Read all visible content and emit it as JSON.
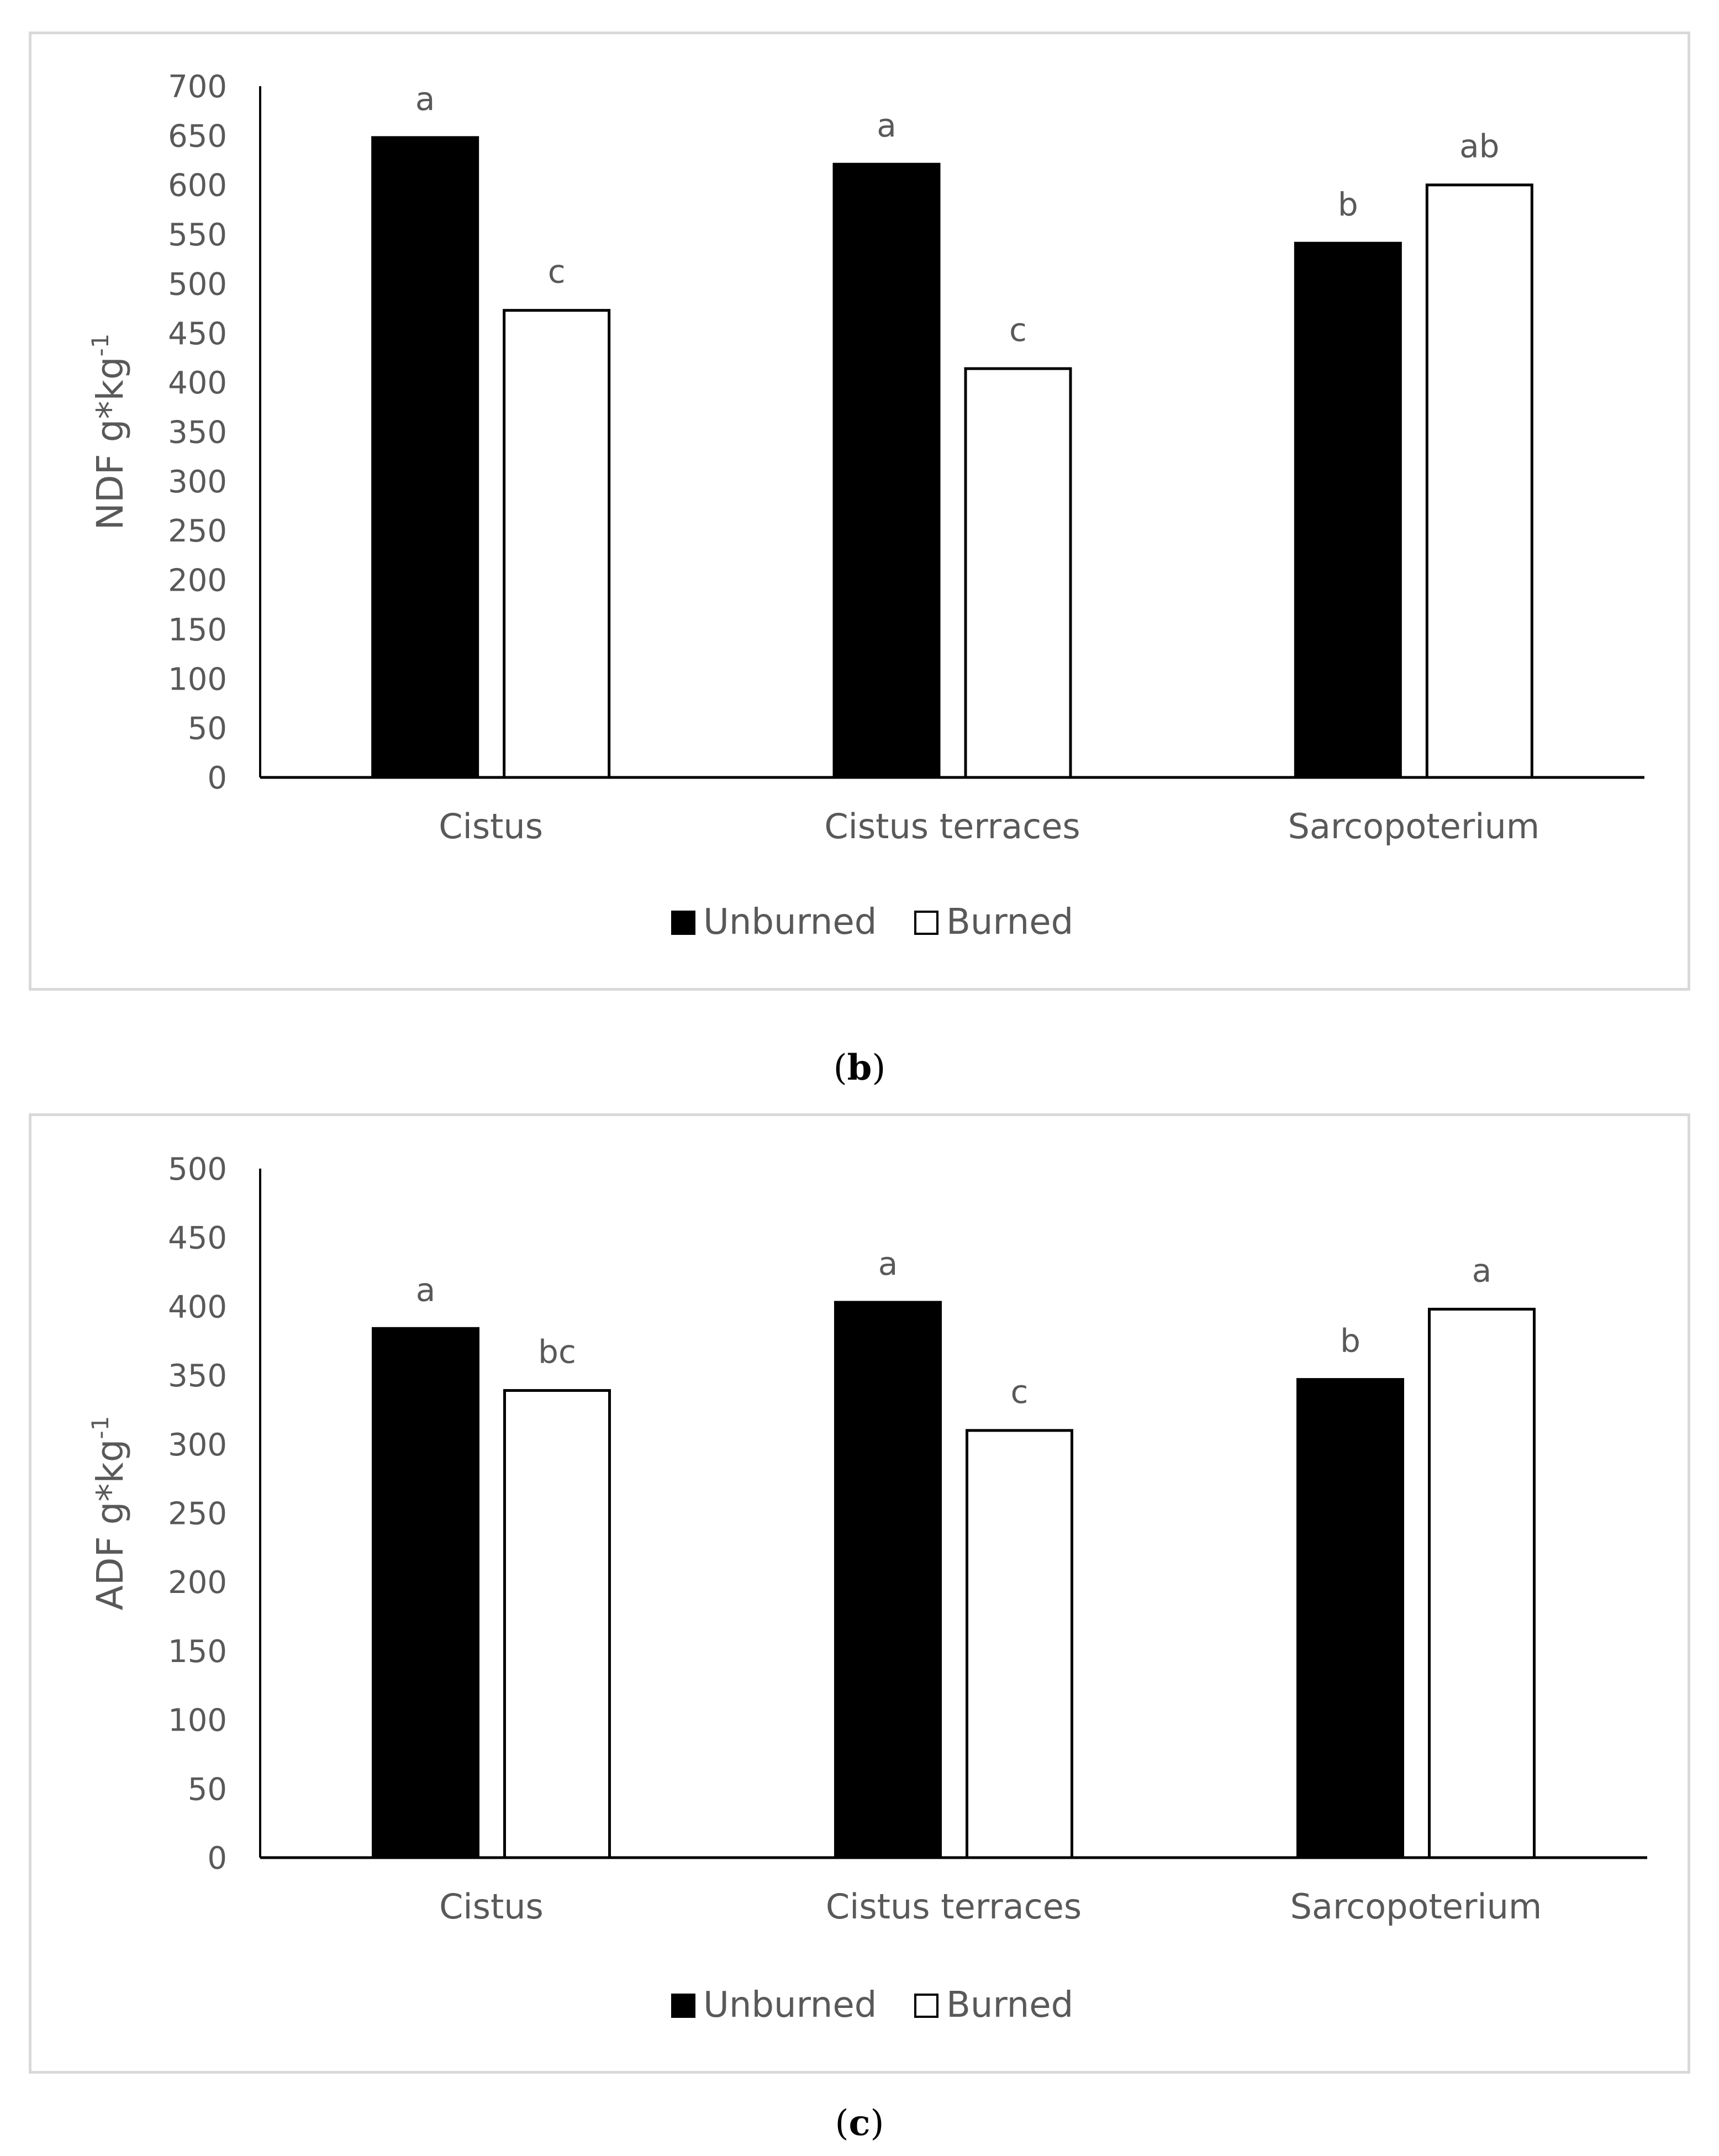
{
  "chart_data": [
    {
      "type": "bar",
      "panel": "b",
      "caption_label": "b",
      "ylabel": "NDF g*kg",
      "ylabel_sup": "-1",
      "ylim": [
        0,
        700
      ],
      "yticks": [
        0,
        50,
        100,
        150,
        200,
        250,
        300,
        350,
        400,
        450,
        500,
        550,
        600,
        650,
        700
      ],
      "categories": [
        "Cistus",
        "Cistus terraces",
        "Sarcopoterium"
      ],
      "series": [
        {
          "name": "Unburned",
          "color": "#000000",
          "values": [
            648,
            621,
            541
          ],
          "letters": [
            "a",
            "a",
            "b"
          ]
        },
        {
          "name": "Burned",
          "color": "#ffffff",
          "values": [
            473,
            414,
            600
          ],
          "letters": [
            "c",
            "c",
            "ab"
          ]
        }
      ],
      "legend": "bottom"
    },
    {
      "type": "bar",
      "panel": "c",
      "caption_label": "c",
      "ylabel": "ADF g*kg",
      "ylabel_sup": "-1",
      "ylim": [
        0,
        500
      ],
      "yticks": [
        0,
        50,
        100,
        150,
        200,
        250,
        300,
        350,
        400,
        450,
        500
      ],
      "categories": [
        "Cistus",
        "Cistus terraces",
        "Sarcopoterium"
      ],
      "series": [
        {
          "name": "Unburned",
          "color": "#000000",
          "values": [
            384,
            403,
            347
          ],
          "letters": [
            "a",
            "a",
            "b"
          ]
        },
        {
          "name": "Burned",
          "color": "#ffffff",
          "values": [
            339,
            310,
            398
          ],
          "letters": [
            "bc",
            "c",
            "a"
          ]
        }
      ],
      "legend": "bottom"
    }
  ]
}
